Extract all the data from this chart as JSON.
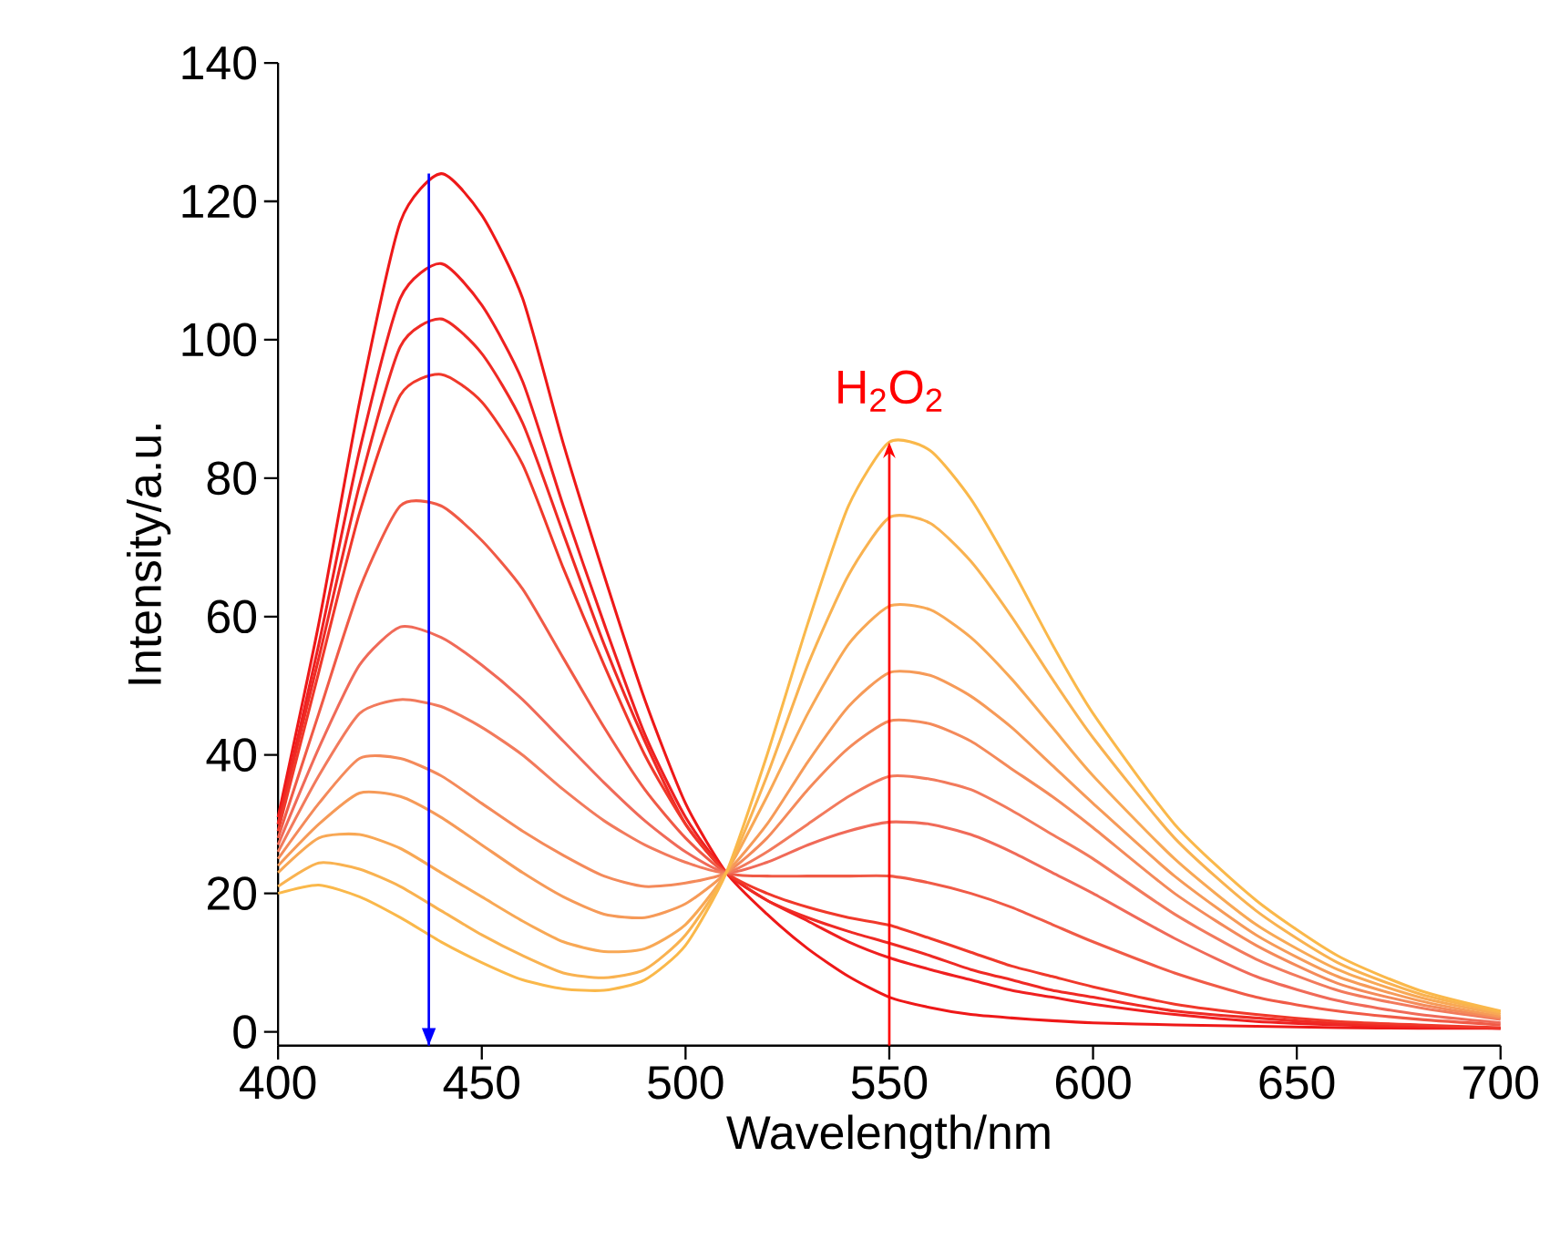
{
  "chart_data": {
    "type": "line",
    "xlabel": "Wavelength/nm",
    "ylabel": "Intensity/a.u.",
    "xlim": [
      400,
      700
    ],
    "ylim": [
      -2,
      140
    ],
    "xticks": [
      400,
      450,
      500,
      550,
      600,
      650,
      700
    ],
    "yticks": [
      0,
      20,
      40,
      60,
      80,
      100,
      120,
      140
    ],
    "marker": "none",
    "line_style": "solid",
    "annotations": [
      "H$_{2}$O$_{2}$"
    ],
    "ref_lines": [
      {
        "axis": "x",
        "value": 437,
        "color": "#0000ff"
      }
    ],
    "x": [
      400,
      410,
      420,
      430,
      440,
      450,
      460,
      470,
      480,
      490,
      500,
      510,
      520,
      530,
      540,
      550,
      560,
      570,
      580,
      590,
      600,
      620,
      640,
      660,
      680,
      700
    ],
    "series": [
      {
        "color": "#ee1818",
        "values": [
          31,
          59,
          91,
          117,
          124,
          118,
          106,
          85,
          66,
          48,
          33,
          23,
          17,
          12,
          8,
          5,
          3.5,
          2.5,
          2,
          1.6,
          1.3,
          1,
          0.8,
          0.6,
          0.5,
          0.5
        ]
      },
      {
        "color": "#ef2020",
        "values": [
          30,
          56,
          84,
          106,
          111,
          105,
          94,
          76,
          59,
          43,
          31,
          23,
          19,
          16,
          13,
          10.7,
          9,
          7.5,
          6,
          5,
          4,
          2.5,
          1.5,
          1,
          0.7,
          0.5
        ]
      },
      {
        "color": "#ef2a24",
        "values": [
          30,
          54,
          79,
          99,
          103,
          98,
          88,
          72,
          56,
          42,
          30,
          23,
          19,
          16.5,
          14.5,
          12.8,
          11,
          9,
          7.5,
          6,
          5,
          3,
          2,
          1.2,
          0.8,
          0.5
        ]
      },
      {
        "color": "#f0382a",
        "values": [
          29,
          52,
          75,
          92,
          95,
          91,
          82,
          67,
          53,
          40,
          30,
          23,
          20,
          18,
          16.5,
          15.4,
          13.5,
          11.5,
          9.5,
          8,
          6.5,
          4,
          2.5,
          1.5,
          1,
          0.6
        ]
      },
      {
        "color": "#f05a46",
        "values": [
          28,
          46,
          64,
          76,
          76,
          71,
          64,
          54,
          44,
          35,
          28,
          23,
          22.5,
          22.5,
          22.5,
          22.5,
          21.5,
          20,
          18,
          15.5,
          13,
          8.5,
          5,
          3,
          1.8,
          1
        ]
      },
      {
        "color": "#f06a58",
        "values": [
          27,
          41,
          53,
          58.5,
          57,
          53,
          48,
          42,
          36,
          30.5,
          26,
          23,
          24.5,
          27,
          29,
          30.3,
          30,
          28.5,
          26,
          23,
          20,
          13.5,
          8,
          4.5,
          2.5,
          1.3
        ]
      },
      {
        "color": "#f27a5c",
        "values": [
          26,
          37,
          46,
          48,
          47,
          44,
          40,
          35,
          30.5,
          27,
          24.5,
          23,
          26,
          30,
          34,
          36.9,
          36.5,
          35,
          32,
          28.5,
          25,
          17,
          10.5,
          6,
          3.5,
          1.8
        ]
      },
      {
        "color": "#f48a5a",
        "values": [
          25,
          33,
          39.5,
          39.5,
          37,
          33,
          29,
          25.5,
          22.5,
          21,
          21.5,
          23,
          28,
          35,
          41,
          44.9,
          44.5,
          42,
          38,
          34,
          29.5,
          20,
          12.5,
          7,
          4,
          2
        ]
      },
      {
        "color": "#f69a58",
        "values": [
          24,
          30,
          34.5,
          34,
          31,
          27,
          23,
          19.5,
          17,
          16.5,
          18.5,
          23,
          30,
          39,
          47,
          51.9,
          51.5,
          48.5,
          44,
          38.5,
          33,
          22.5,
          14,
          8,
          4.5,
          2.2
        ]
      },
      {
        "color": "#f8a855",
        "values": [
          23,
          28,
          28.5,
          26.5,
          23,
          19.5,
          16,
          13,
          11.6,
          12,
          15.5,
          23,
          34,
          46,
          56,
          61.5,
          61,
          57,
          51,
          44,
          37,
          25,
          15.5,
          9,
          5,
          2.5
        ]
      },
      {
        "color": "#f9b250",
        "values": [
          21,
          24.4,
          23.5,
          21,
          17.5,
          14,
          11,
          8.5,
          7.8,
          9,
          14,
          23,
          37,
          53,
          66,
          74.3,
          73.5,
          68,
          60,
          51,
          42.5,
          28,
          17.5,
          10,
          5.5,
          2.8
        ]
      },
      {
        "color": "#fab84a",
        "values": [
          20,
          21.2,
          19.5,
          16.5,
          13,
          10,
          7.5,
          6.2,
          6,
          7.5,
          12.5,
          23,
          40,
          59,
          76,
          85.2,
          84,
          77,
          67,
          56,
          46,
          30,
          19,
          11,
          6,
          3
        ]
      }
    ]
  }
}
